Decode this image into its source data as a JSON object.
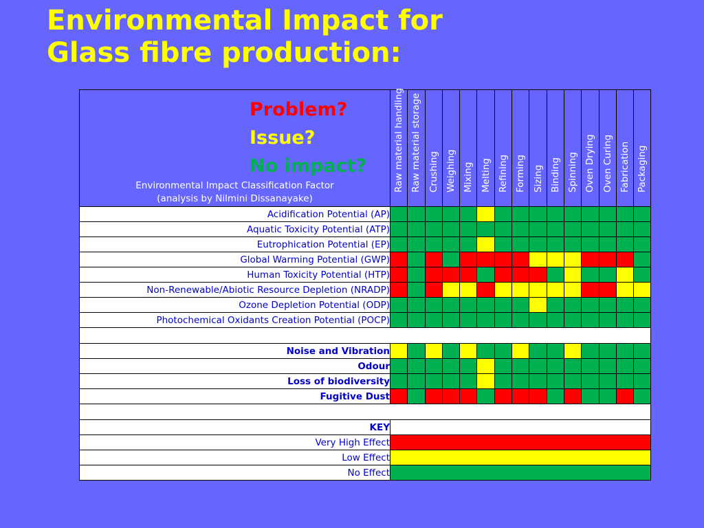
{
  "title": {
    "line1": "Environmental Impact for",
    "line2": "Glass fibre production:"
  },
  "legend": {
    "problem": "Problem?",
    "issue": "Issue?",
    "none": "No impact?"
  },
  "classification": {
    "line1": "Environmental Impact Classification Factor",
    "line2": "(analysis by Nilmini Dissanayake)"
  },
  "processes": [
    "Raw material handling",
    "Raw material storage",
    "Crushing",
    "Weighing",
    "Mixing",
    "Melting",
    "Refining",
    "Forming",
    "Sizing",
    "Binding",
    "Spinning",
    "Oven Drying",
    "Oven Curing",
    "Fabrication",
    "Packaging"
  ],
  "colors": {
    "red": "#ff0000",
    "yellow": "#ffff00",
    "green": "#00b050",
    "background": "#6666ff",
    "title": "#ffff00",
    "label_text": "#0000cc"
  },
  "impact_rows": [
    {
      "label": "Acidification Potential (AP)",
      "bold": false,
      "cells": [
        "G",
        "G",
        "G",
        "G",
        "G",
        "Y",
        "G",
        "G",
        "G",
        "G",
        "G",
        "G",
        "G",
        "G",
        "G"
      ]
    },
    {
      "label": "Aquatic Toxicity Potential (ATP)",
      "bold": false,
      "cells": [
        "G",
        "G",
        "G",
        "G",
        "G",
        "G",
        "G",
        "G",
        "G",
        "G",
        "G",
        "G",
        "G",
        "G",
        "G"
      ]
    },
    {
      "label": "Eutrophication Potential (EP)",
      "bold": false,
      "cells": [
        "G",
        "G",
        "G",
        "G",
        "G",
        "Y",
        "G",
        "G",
        "G",
        "G",
        "G",
        "G",
        "G",
        "G",
        "G"
      ]
    },
    {
      "label": "Global Warming Potential (GWP)",
      "bold": false,
      "cells": [
        "R",
        "G",
        "R",
        "G",
        "R",
        "R",
        "R",
        "R",
        "Y",
        "Y",
        "Y",
        "R",
        "R",
        "R",
        "G"
      ]
    },
    {
      "label": "Human Toxicity Potential (HTP)",
      "bold": false,
      "cells": [
        "R",
        "G",
        "R",
        "R",
        "R",
        "G",
        "R",
        "R",
        "R",
        "G",
        "Y",
        "G",
        "G",
        "Y",
        "G"
      ]
    },
    {
      "label": "Non-Renewable/Abiotic Resource Depletion (NRADP)",
      "bold": false,
      "cells": [
        "R",
        "G",
        "R",
        "Y",
        "Y",
        "R",
        "Y",
        "Y",
        "Y",
        "Y",
        "Y",
        "R",
        "R",
        "Y",
        "Y"
      ]
    },
    {
      "label": "Ozone Depletion Potential (ODP)",
      "bold": false,
      "cells": [
        "G",
        "G",
        "G",
        "G",
        "G",
        "G",
        "G",
        "G",
        "Y",
        "G",
        "G",
        "G",
        "G",
        "G",
        "G"
      ]
    },
    {
      "label": "Photochemical Oxidants Creation Potential (POCP)",
      "bold": false,
      "cells": [
        "G",
        "G",
        "G",
        "G",
        "G",
        "G",
        "G",
        "G",
        "G",
        "G",
        "G",
        "G",
        "G",
        "G",
        "G"
      ]
    }
  ],
  "other_rows": [
    {
      "label": "Noise and Vibration",
      "bold": true,
      "cells": [
        "Y",
        "G",
        "Y",
        "G",
        "Y",
        "G",
        "G",
        "Y",
        "G",
        "G",
        "Y",
        "G",
        "G",
        "G",
        "G"
      ]
    },
    {
      "label": "Odour",
      "bold": true,
      "cells": [
        "G",
        "G",
        "G",
        "G",
        "G",
        "Y",
        "G",
        "G",
        "G",
        "G",
        "G",
        "G",
        "G",
        "G",
        "G"
      ]
    },
    {
      "label": "Loss of biodiversity",
      "bold": true,
      "cells": [
        "G",
        "G",
        "G",
        "G",
        "G",
        "Y",
        "G",
        "G",
        "G",
        "G",
        "G",
        "G",
        "G",
        "G",
        "G"
      ]
    },
    {
      "label": "Fugitive Dust",
      "bold": true,
      "cells": [
        "R",
        "G",
        "R",
        "R",
        "R",
        "G",
        "R",
        "R",
        "R",
        "G",
        "R",
        "G",
        "G",
        "R",
        "G"
      ]
    }
  ],
  "key": {
    "heading": "KEY",
    "items": [
      {
        "label": "Very High Effect",
        "color": "R"
      },
      {
        "label": "Low Effect",
        "color": "Y"
      },
      {
        "label": "No Effect",
        "color": "G"
      }
    ]
  }
}
